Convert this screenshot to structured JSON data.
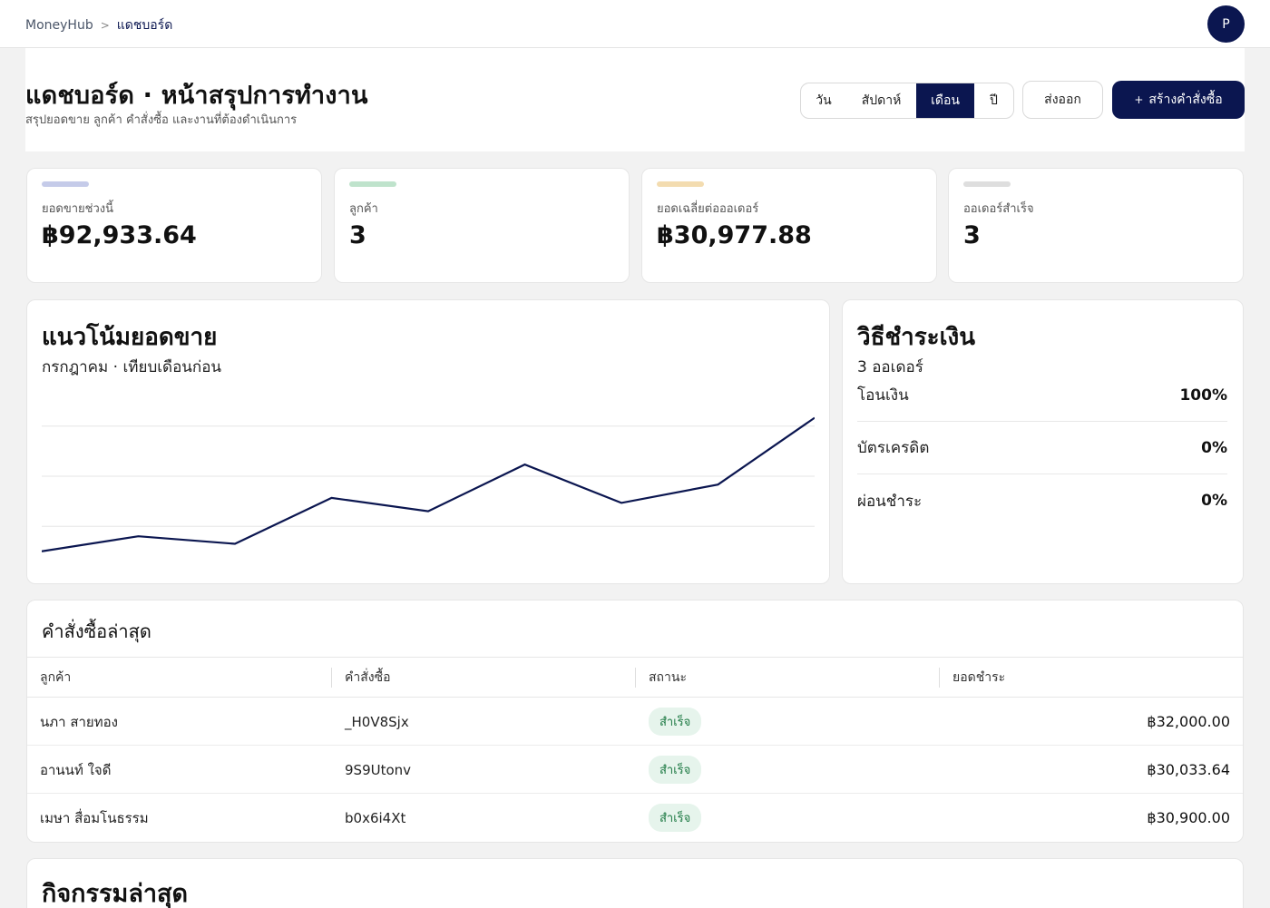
{
  "breadcrumb": {
    "root": "MoneyHub",
    "separator": ">",
    "current": "แดชบอร์ด"
  },
  "user": {
    "avatar_initial": "P"
  },
  "header": {
    "title": "แดชบอร์ด · หน้าสรุปการทำงาน",
    "subtitle": "สรุปยอดขาย ลูกค้า คำสั่งซื้อ และงานที่ต้องดำเนินการ",
    "range_tabs": [
      {
        "label": "วัน",
        "active": false
      },
      {
        "label": "สัปดาห์",
        "active": false
      },
      {
        "label": "เดือน",
        "active": true
      },
      {
        "label": "ปี",
        "active": false
      }
    ],
    "export_label": "ส่งออก",
    "create_icon": "+",
    "create_label": "สร้างคำสั่งซื้อ"
  },
  "kpis": [
    {
      "label": "ยอดขายช่วงนี้",
      "value": "฿92,933.64",
      "color": "#c5cbe9"
    },
    {
      "label": "ลูกค้า",
      "value": "3",
      "color": "#bfe3cc"
    },
    {
      "label": "ยอดเฉลี่ยต่อออเดอร์",
      "value": "฿30,977.88",
      "color": "#f3dcb0"
    },
    {
      "label": "ออเดอร์สำเร็จ",
      "value": "3",
      "color": "#dedede"
    }
  ],
  "trend": {
    "title": "แนวโน้มยอดขาย",
    "subtitle": "กรกฎาคม · เทียบเดือนก่อน"
  },
  "chart_data": {
    "type": "line",
    "x": [
      1,
      2,
      3,
      4,
      5,
      6,
      7,
      8,
      9
    ],
    "values": [
      5,
      14,
      9.5,
      37,
      29,
      57,
      34,
      45,
      85
    ],
    "ylim": [
      0,
      100
    ],
    "grid": true,
    "line_color": "#0b1650"
  },
  "payments": {
    "title": "วิธีชำระเงิน",
    "subtitle": "3 ออเดอร์",
    "items": [
      {
        "name": "โอนเงิน",
        "percent": "100%"
      },
      {
        "name": "บัตรเครดิต",
        "percent": "0%"
      },
      {
        "name": "ผ่อนชำระ",
        "percent": "0%"
      }
    ]
  },
  "orders": {
    "title": "คำสั่งซื้อล่าสุด",
    "columns": [
      "ลูกค้า",
      "คำสั่งซื้อ",
      "สถานะ",
      "ยอดชำระ"
    ],
    "rows": [
      {
        "customer": "นภา สายทอง",
        "order_id": "_H0V8Sjx",
        "status": "สำเร็จ",
        "amount": "฿32,000.00"
      },
      {
        "customer": "อานนท์ ใจดี",
        "order_id": "9S9Utonv",
        "status": "สำเร็จ",
        "amount": "฿30,033.64"
      },
      {
        "customer": "เมษา สื่อมโนธรรม",
        "order_id": "b0x6i4Xt",
        "status": "สำเร็จ",
        "amount": "฿30,900.00"
      }
    ]
  },
  "activity": {
    "title": "กิจกรรมล่าสุด"
  }
}
